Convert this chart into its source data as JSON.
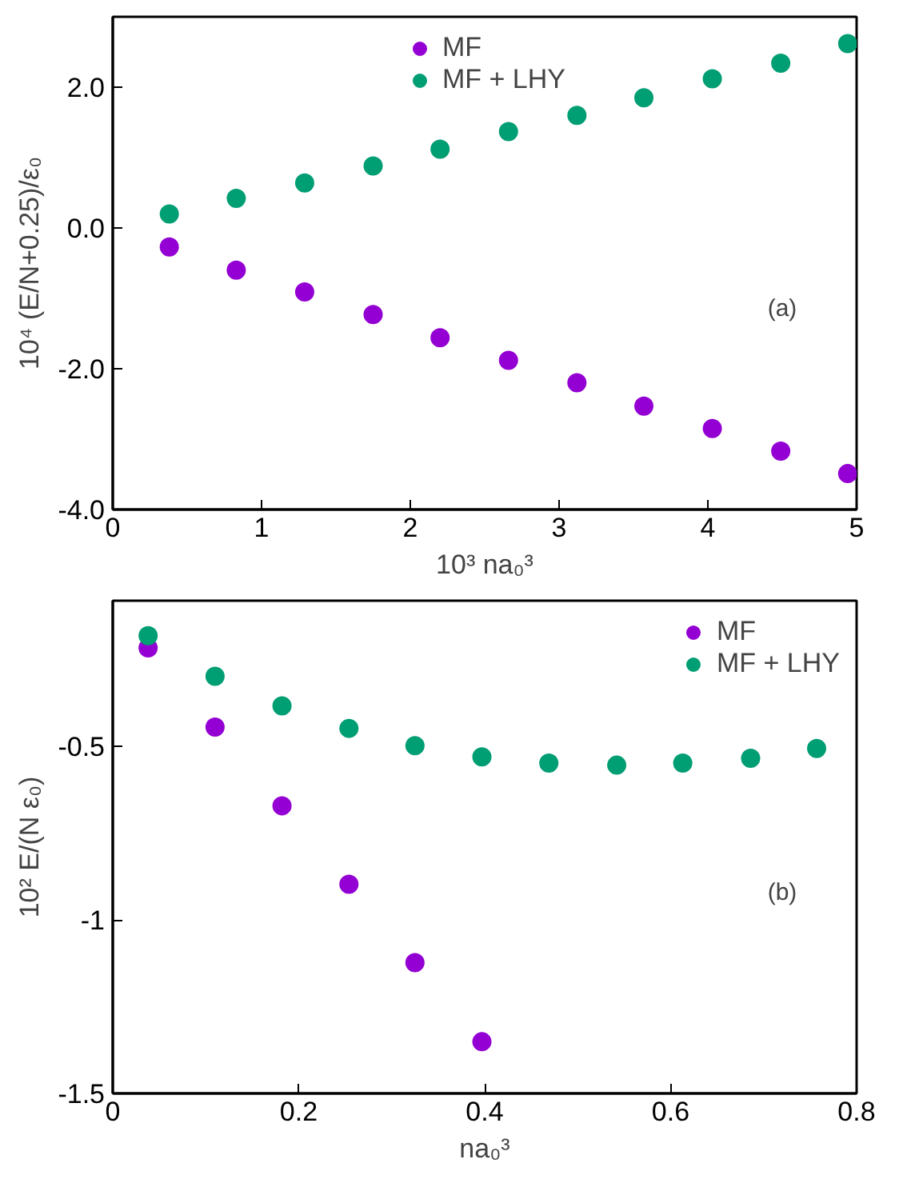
{
  "chart_data": [
    {
      "type": "scatter",
      "xlabel": "10³ na₀³",
      "ylabel": "10⁴ (E/N+0.25)/ε₀",
      "annotations": [
        "(a)"
      ],
      "xlim": [
        0,
        5
      ],
      "xticks": [
        0,
        1,
        2,
        3,
        4,
        5
      ],
      "ylim": [
        -4,
        3
      ],
      "yticks": [
        {
          "value": -4,
          "label": "-4.0"
        },
        {
          "value": -2,
          "label": "-2.0"
        },
        {
          "value": 0,
          "label": "0.0"
        },
        {
          "value": 2,
          "label": "2.0"
        }
      ],
      "grid": false,
      "legend": "top",
      "marker": "circle",
      "series": [
        {
          "name": "MF",
          "color": "#9400d3",
          "x": [
            0.38,
            0.83,
            1.29,
            1.75,
            2.2,
            2.66,
            3.12,
            3.57,
            4.03,
            4.49,
            4.94
          ],
          "values": [
            -0.27,
            -0.6,
            -0.91,
            -1.23,
            -1.56,
            -1.88,
            -2.2,
            -2.53,
            -2.85,
            -3.17,
            -3.49
          ]
        },
        {
          "name": "MF + LHY",
          "color": "#009e73",
          "x": [
            0.38,
            0.83,
            1.29,
            1.75,
            2.2,
            2.66,
            3.12,
            3.57,
            4.03,
            4.49,
            4.94
          ],
          "values": [
            0.2,
            0.42,
            0.64,
            0.88,
            1.12,
            1.37,
            1.6,
            1.85,
            2.12,
            2.34,
            2.62
          ]
        }
      ]
    },
    {
      "type": "scatter",
      "xlabel": "na₀³",
      "ylabel": "10² E/(N ε₀)",
      "annotations": [
        "(b)"
      ],
      "xlim": [
        0,
        0.8
      ],
      "xticks": [
        0,
        0.2,
        0.4,
        0.6,
        0.8
      ],
      "ylim": [
        -1.5,
        -0.08
      ],
      "yticks": [
        -1.5,
        -1,
        -0.5
      ],
      "grid": false,
      "legend": "top right",
      "marker": "circle",
      "series": [
        {
          "name": "MF",
          "color": "#9400d3",
          "x": [
            0.038,
            0.11,
            0.182,
            0.254,
            0.325,
            0.397
          ],
          "values": [
            -0.216,
            -0.444,
            -0.671,
            -0.897,
            -1.123,
            -1.351
          ]
        },
        {
          "name": "MF + LHY",
          "color": "#009e73",
          "x": [
            0.038,
            0.11,
            0.182,
            0.254,
            0.325,
            0.397,
            0.469,
            0.542,
            0.613,
            0.686,
            0.757
          ],
          "values": [
            -0.181,
            -0.298,
            -0.383,
            -0.448,
            -0.498,
            -0.53,
            -0.548,
            -0.554,
            -0.548,
            -0.534,
            -0.506
          ]
        }
      ]
    }
  ]
}
